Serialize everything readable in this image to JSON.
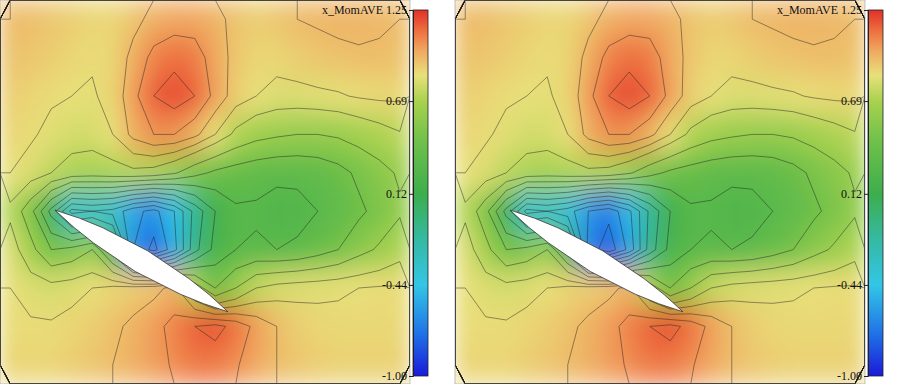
{
  "chart_data": [
    {
      "type": "contour",
      "title": "x_MomAVE",
      "tick_labels": false,
      "xlim": [
        0,
        20
      ],
      "ylim": [
        0,
        10
      ],
      "zlim": [
        -1,
        1.25
      ],
      "zticks": [
        1.25,
        0.69,
        0.12,
        -0.44,
        {
          "value": -1,
          "label": "-1.00"
        }
      ],
      "levels": [
        -0.9,
        -0.75,
        -0.6,
        -0.45,
        -0.3,
        -0.15,
        0,
        0.15,
        0.3,
        0.45,
        0.6,
        0.75,
        0.85,
        0.95,
        1.05,
        1.15
      ],
      "airfoil": {
        "x": [
          2.68,
          3.87,
          5.01,
          7.2,
          9.23,
          10.2,
          11.12,
          9.94,
          8.79,
          6.6,
          4.57,
          3.6
        ],
        "y": [
          4.53,
          4.32,
          4.07,
          3.47,
          2.74,
          2.33,
          1.88,
          2.09,
          2.34,
          2.93,
          3.67,
          4.08
        ]
      },
      "z": [
        [
          0.95,
          0.94,
          0.92,
          0.9,
          0.88,
          0.88,
          0.92,
          0.98,
          1.0,
          1.0,
          0.97,
          0.93,
          0.9,
          0.92,
          0.95,
          0.96,
          0.97,
          0.97,
          0.96,
          0.95
        ],
        [
          0.93,
          0.92,
          0.9,
          0.88,
          0.86,
          0.88,
          0.98,
          1.08,
          1.12,
          1.1,
          1.0,
          0.92,
          0.88,
          0.88,
          0.9,
          0.92,
          0.93,
          0.94,
          0.94,
          0.93
        ],
        [
          0.9,
          0.88,
          0.86,
          0.85,
          0.84,
          0.88,
          1.02,
          1.15,
          1.2,
          1.15,
          1.02,
          0.9,
          0.85,
          0.82,
          0.82,
          0.83,
          0.84,
          0.86,
          0.87,
          0.87
        ],
        [
          0.88,
          0.86,
          0.83,
          0.8,
          0.8,
          0.85,
          0.98,
          1.05,
          1.05,
          0.98,
          0.85,
          0.72,
          0.65,
          0.62,
          0.6,
          0.6,
          0.62,
          0.66,
          0.7,
          0.74
        ],
        [
          0.85,
          0.82,
          0.75,
          0.7,
          0.68,
          0.7,
          0.72,
          0.7,
          0.62,
          0.5,
          0.42,
          0.38,
          0.35,
          0.33,
          0.33,
          0.35,
          0.4,
          0.48,
          0.55,
          0.62
        ],
        [
          0.72,
          0.5,
          0.1,
          -0.35,
          -0.3,
          -0.35,
          -0.55,
          -0.65,
          -0.45,
          -0.1,
          0.15,
          0.28,
          0.28,
          0.25,
          0.26,
          0.3,
          0.35,
          0.42,
          0.5,
          0.58
        ],
        [
          0.82,
          0.65,
          0.45,
          0.5,
          0.6,
          0.2,
          -0.6,
          -0.8,
          -0.5,
          -0.05,
          0.2,
          0.3,
          0.32,
          0.3,
          0.32,
          0.38,
          0.45,
          0.55,
          0.62,
          0.7
        ],
        [
          0.85,
          0.82,
          0.8,
          0.82,
          0.85,
          0.88,
          0.9,
          0.92,
          0.98,
          0.7,
          0.45,
          0.6,
          0.75,
          0.8,
          0.82,
          0.83,
          0.84,
          0.85,
          0.86,
          0.86
        ],
        [
          0.86,
          0.86,
          0.86,
          0.88,
          0.9,
          0.93,
          0.97,
          1.02,
          1.08,
          1.15,
          1.18,
          1.12,
          1.02,
          0.95,
          0.9,
          0.88,
          0.87,
          0.87,
          0.87,
          0.87
        ],
        [
          0.88,
          0.88,
          0.88,
          0.9,
          0.92,
          0.95,
          0.98,
          1.02,
          1.06,
          1.1,
          1.1,
          1.06,
          1.0,
          0.95,
          0.92,
          0.9,
          0.89,
          0.89,
          0.89,
          0.89
        ]
      ]
    },
    {
      "type": "contour",
      "title": "x_MomAVE",
      "tick_labels": false,
      "xlim": [
        0,
        20
      ],
      "ylim": [
        0,
        10
      ],
      "zlim": [
        -1,
        1.25
      ],
      "zticks": [
        1.25,
        0.69,
        0.12,
        -0.44,
        {
          "value": -1,
          "label": "-1.00"
        }
      ],
      "levels": [
        -0.9,
        -0.75,
        -0.6,
        -0.45,
        -0.3,
        -0.15,
        0,
        0.15,
        0.3,
        0.45,
        0.6,
        0.75,
        0.85,
        0.95,
        1.05,
        1.15
      ],
      "airfoil": {
        "x": [
          2.68,
          3.87,
          5.01,
          7.2,
          9.23,
          10.2,
          11.12,
          9.94,
          8.79,
          6.6,
          4.57,
          3.6
        ],
        "y": [
          4.53,
          4.32,
          4.07,
          3.47,
          2.74,
          2.33,
          1.88,
          2.09,
          2.34,
          2.93,
          3.67,
          4.08
        ]
      },
      "z": [
        [
          0.95,
          0.94,
          0.92,
          0.9,
          0.88,
          0.88,
          0.92,
          0.98,
          1.0,
          1.0,
          0.97,
          0.93,
          0.9,
          0.92,
          0.95,
          0.96,
          0.97,
          0.97,
          0.96,
          0.95
        ],
        [
          0.93,
          0.92,
          0.9,
          0.88,
          0.86,
          0.88,
          0.98,
          1.08,
          1.12,
          1.1,
          1.0,
          0.92,
          0.88,
          0.88,
          0.9,
          0.92,
          0.93,
          0.94,
          0.94,
          0.93
        ],
        [
          0.9,
          0.88,
          0.86,
          0.85,
          0.84,
          0.88,
          1.02,
          1.15,
          1.2,
          1.15,
          1.02,
          0.9,
          0.85,
          0.82,
          0.82,
          0.83,
          0.84,
          0.86,
          0.87,
          0.87
        ],
        [
          0.88,
          0.86,
          0.83,
          0.8,
          0.8,
          0.85,
          0.98,
          1.05,
          1.05,
          0.98,
          0.85,
          0.72,
          0.65,
          0.62,
          0.6,
          0.6,
          0.62,
          0.66,
          0.7,
          0.74
        ],
        [
          0.85,
          0.82,
          0.75,
          0.7,
          0.68,
          0.7,
          0.72,
          0.7,
          0.62,
          0.5,
          0.42,
          0.38,
          0.35,
          0.33,
          0.33,
          0.35,
          0.4,
          0.48,
          0.55,
          0.62
        ],
        [
          0.72,
          0.5,
          0.1,
          -0.35,
          -0.3,
          -0.38,
          -0.6,
          -0.7,
          -0.48,
          -0.12,
          0.15,
          0.28,
          0.28,
          0.25,
          0.26,
          0.3,
          0.35,
          0.42,
          0.5,
          0.58
        ],
        [
          0.82,
          0.65,
          0.45,
          0.5,
          0.6,
          0.2,
          -0.65,
          -0.85,
          -0.55,
          -0.08,
          0.2,
          0.3,
          0.32,
          0.3,
          0.32,
          0.38,
          0.45,
          0.55,
          0.62,
          0.7
        ],
        [
          0.85,
          0.82,
          0.8,
          0.82,
          0.85,
          0.88,
          0.9,
          0.92,
          0.98,
          0.7,
          0.45,
          0.6,
          0.75,
          0.8,
          0.82,
          0.83,
          0.84,
          0.85,
          0.86,
          0.86
        ],
        [
          0.86,
          0.86,
          0.86,
          0.88,
          0.9,
          0.93,
          0.97,
          1.02,
          1.08,
          1.15,
          1.18,
          1.12,
          1.02,
          0.95,
          0.9,
          0.88,
          0.87,
          0.87,
          0.87,
          0.87
        ],
        [
          0.88,
          0.88,
          0.88,
          0.9,
          0.92,
          0.95,
          0.98,
          1.02,
          1.06,
          1.1,
          1.1,
          1.06,
          1.0,
          0.95,
          0.92,
          0.9,
          0.89,
          0.89,
          0.89,
          0.89
        ]
      ]
    }
  ]
}
